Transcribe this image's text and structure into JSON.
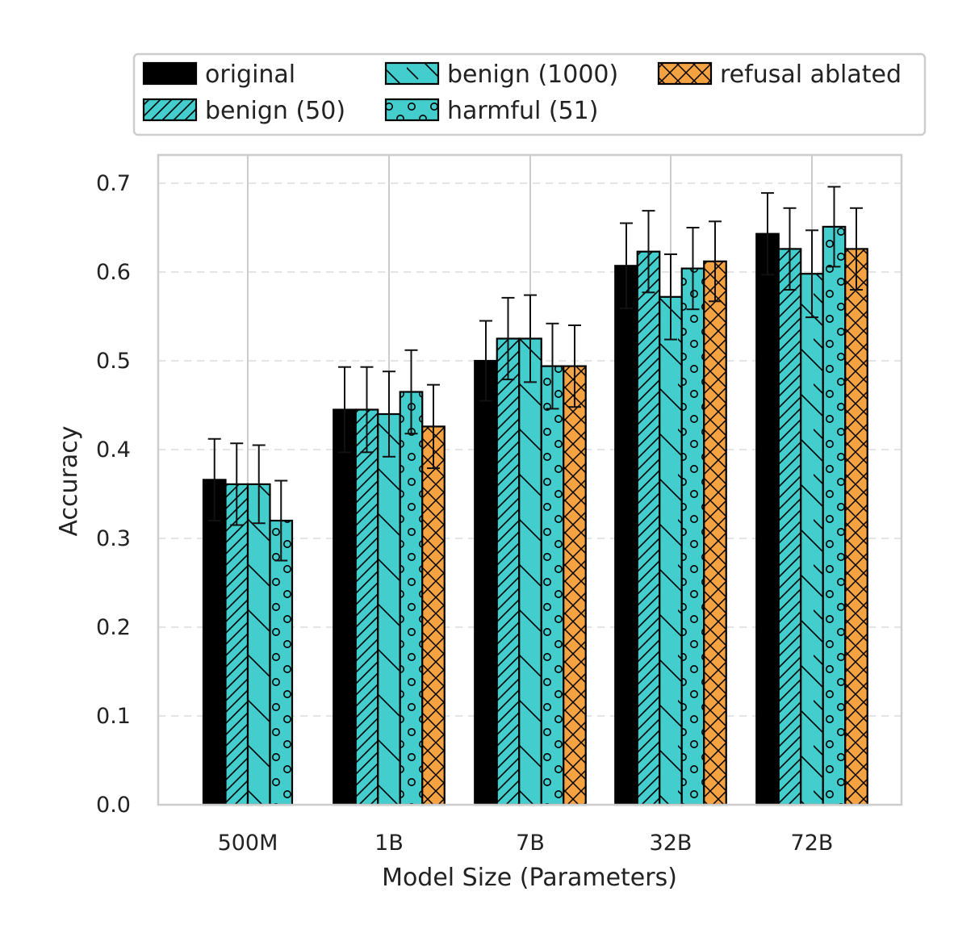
{
  "chart_data": {
    "type": "bar",
    "title": "",
    "xlabel": "Model Size (Parameters)",
    "ylabel": "Accuracy",
    "ylim": [
      0,
      0.72
    ],
    "yticks": [
      "0.0",
      "0.1",
      "0.2",
      "0.3",
      "0.4",
      "0.5",
      "0.6",
      "0.7"
    ],
    "categories": [
      "500M",
      "1B",
      "7B",
      "32B",
      "72B"
    ],
    "grid": true,
    "legend_position": "top",
    "series": [
      {
        "name": "original",
        "color": "#000000",
        "hatch": "none",
        "values": [
          0.366,
          0.445,
          0.5,
          0.607,
          0.643
        ],
        "errors": [
          0.046,
          0.048,
          0.045,
          0.048,
          0.046
        ]
      },
      {
        "name": "benign (50)",
        "color": "#44cdcd",
        "hatch": "diagonal",
        "values": [
          0.361,
          0.445,
          0.525,
          0.623,
          0.626
        ],
        "errors": [
          0.046,
          0.048,
          0.046,
          0.046,
          0.046
        ]
      },
      {
        "name": "benign (1000)",
        "color": "#44cdcd",
        "hatch": "backslash",
        "values": [
          0.361,
          0.44,
          0.525,
          0.572,
          0.598
        ],
        "errors": [
          0.044,
          0.048,
          0.049,
          0.048,
          0.049
        ]
      },
      {
        "name": "harmful (51)",
        "color": "#44cdcd",
        "hatch": "circles",
        "values": [
          0.32,
          0.465,
          0.494,
          0.604,
          0.651
        ],
        "errors": [
          0.045,
          0.047,
          0.048,
          0.046,
          0.045
        ]
      },
      {
        "name": "refusal ablated",
        "color": "#f5a243",
        "hatch": "crosshatch",
        "values": [
          null,
          0.426,
          0.494,
          0.612,
          0.626
        ],
        "errors": [
          null,
          0.047,
          0.046,
          0.045,
          0.046
        ]
      }
    ]
  }
}
